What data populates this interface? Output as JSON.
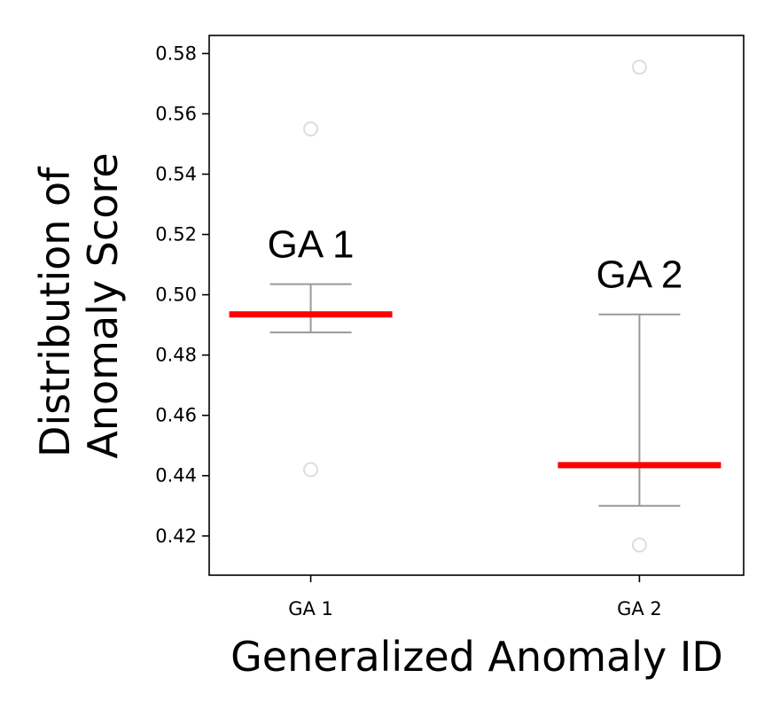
{
  "chart_data": {
    "type": "boxplot",
    "title": "",
    "xlabel": "Generalized Anomaly ID",
    "ylabel_lines": [
      "Distribution of",
      "Anomaly Score"
    ],
    "categories": [
      "GA 1",
      "GA 2"
    ],
    "ylim": [
      0.407,
      0.586
    ],
    "yticks": [
      0.42,
      0.44,
      0.46,
      0.48,
      0.5,
      0.52,
      0.54,
      0.56,
      0.58
    ],
    "ytick_labels": [
      "0.42",
      "0.44",
      "0.46",
      "0.48",
      "0.50",
      "0.52",
      "0.54",
      "0.56",
      "0.58"
    ],
    "grid": false,
    "boxes": [
      {
        "category": "GA 1",
        "annotation": "GA 1",
        "median": 0.4935,
        "whisker_low": 0.4875,
        "whisker_high": 0.5035,
        "outliers": [
          0.555,
          0.442
        ]
      },
      {
        "category": "GA 2",
        "annotation": "GA 2",
        "median": 0.4435,
        "whisker_low": 0.43,
        "whisker_high": 0.4935,
        "outliers": [
          0.5755,
          0.417
        ]
      }
    ],
    "colors": {
      "median": "#ff0000",
      "whisker": "#999999",
      "outlier": "#dddddd",
      "axis": "#000000"
    }
  }
}
